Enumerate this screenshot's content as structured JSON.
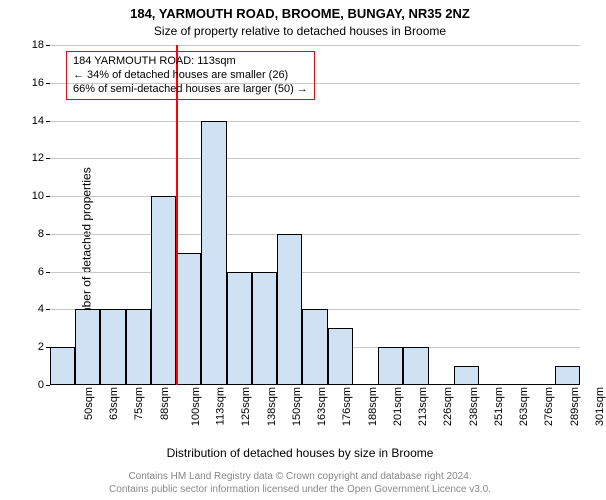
{
  "title": "184, YARMOUTH ROAD, BROOME, BUNGAY, NR35 2NZ",
  "subtitle": "Size of property relative to detached houses in Broome",
  "ylabel": "Number of detached properties",
  "xlabel": "Distribution of detached houses by size in Broome",
  "credit1": "Contains HM Land Registry data © Crown copyright and database right 2024.",
  "credit2": "Contains public sector information licensed under the Open Government Licence v3.0.",
  "chart": {
    "type": "histogram",
    "ylim": [
      0,
      18
    ],
    "ytick_step": 2,
    "background_color": "#ffffff",
    "grid_color": "#c8c8c8",
    "axis_color": "#000000",
    "bar_fill": "#cfe2f3",
    "bar_border": "#000000",
    "categories": [
      "50sqm",
      "63sqm",
      "75sqm",
      "88sqm",
      "100sqm",
      "113sqm",
      "125sqm",
      "138sqm",
      "150sqm",
      "163sqm",
      "176sqm",
      "188sqm",
      "201sqm",
      "213sqm",
      "226sqm",
      "238sqm",
      "251sqm",
      "263sqm",
      "276sqm",
      "289sqm",
      "301sqm"
    ],
    "values": [
      2,
      4,
      4,
      4,
      10,
      7,
      14,
      6,
      6,
      8,
      4,
      3,
      0,
      2,
      2,
      0,
      1,
      0,
      0,
      0,
      1
    ],
    "marker": {
      "category_index": 5,
      "color": "#ff0000"
    },
    "annotation": {
      "border_color": "#ff0000",
      "line1": "184 YARMOUTH ROAD: 113sqm",
      "line2": "← 34% of detached houses are smaller (26)",
      "line3": "66% of semi-detached houses are larger (50) →"
    }
  }
}
